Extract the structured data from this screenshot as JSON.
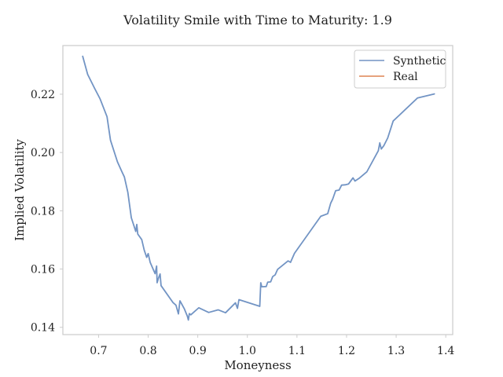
{
  "chart_data": {
    "type": "line",
    "title": "Volatility Smile with Time to Maturity: 1.9",
    "xlabel": "Moneyness",
    "ylabel": "Implied Volatility",
    "xlim": [
      0.628,
      1.414
    ],
    "ylim": [
      0.1375,
      0.2367
    ],
    "xticks": [
      0.7,
      0.8,
      0.9,
      1.0,
      1.1,
      1.2,
      1.3,
      1.4
    ],
    "xtick_labels": [
      "0.7",
      "0.8",
      "0.9",
      "1.0",
      "1.1",
      "1.2",
      "1.3",
      "1.4"
    ],
    "yticks": [
      0.14,
      0.16,
      0.18,
      0.2,
      0.22
    ],
    "ytick_labels": [
      "0.14",
      "0.16",
      "0.18",
      "0.20",
      "0.22"
    ],
    "grid": false,
    "legend_position": "top-right",
    "series": [
      {
        "name": "Synthetic",
        "color": "#7294c4",
        "x": [
          0.668,
          0.678,
          0.692,
          0.703,
          0.717,
          0.724,
          0.738,
          0.747,
          0.752,
          0.759,
          0.766,
          0.775,
          0.777,
          0.779,
          0.787,
          0.792,
          0.797,
          0.8,
          0.804,
          0.814,
          0.817,
          0.818,
          0.821,
          0.824,
          0.826,
          0.85,
          0.856,
          0.861,
          0.864,
          0.873,
          0.879,
          0.881,
          0.883,
          0.886,
          0.902,
          0.922,
          0.941,
          0.956,
          0.976,
          0.98,
          0.983,
          1.025,
          1.027,
          1.029,
          1.038,
          1.041,
          1.047,
          1.051,
          1.056,
          1.061,
          1.082,
          1.087,
          1.095,
          1.148,
          1.162,
          1.168,
          1.172,
          1.178,
          1.185,
          1.19,
          1.197,
          1.204,
          1.213,
          1.217,
          1.225,
          1.241,
          1.264,
          1.267,
          1.27,
          1.275,
          1.283,
          1.294,
          1.343,
          1.377
        ],
        "y": [
          0.233,
          0.2268,
          0.222,
          0.2184,
          0.2123,
          0.2042,
          0.1968,
          0.1934,
          0.1916,
          0.1863,
          0.1776,
          0.1729,
          0.1753,
          0.172,
          0.1701,
          0.1665,
          0.164,
          0.1653,
          0.1623,
          0.1584,
          0.161,
          0.1553,
          0.157,
          0.1583,
          0.1543,
          0.1485,
          0.1476,
          0.1446,
          0.1491,
          0.1463,
          0.1438,
          0.1425,
          0.1447,
          0.1443,
          0.1467,
          0.1451,
          0.146,
          0.145,
          0.1484,
          0.1465,
          0.1495,
          0.1472,
          0.1553,
          0.1539,
          0.154,
          0.1555,
          0.1556,
          0.1574,
          0.158,
          0.1599,
          0.1628,
          0.1623,
          0.1654,
          0.1781,
          0.179,
          0.1826,
          0.184,
          0.1869,
          0.1871,
          0.1888,
          0.1889,
          0.1892,
          0.1913,
          0.1902,
          0.1911,
          0.1934,
          0.2006,
          0.2033,
          0.2012,
          0.2023,
          0.205,
          0.2108,
          0.2187,
          0.2201
        ]
      },
      {
        "name": "Real",
        "color": "#dd8452",
        "x": [],
        "y": []
      }
    ]
  }
}
